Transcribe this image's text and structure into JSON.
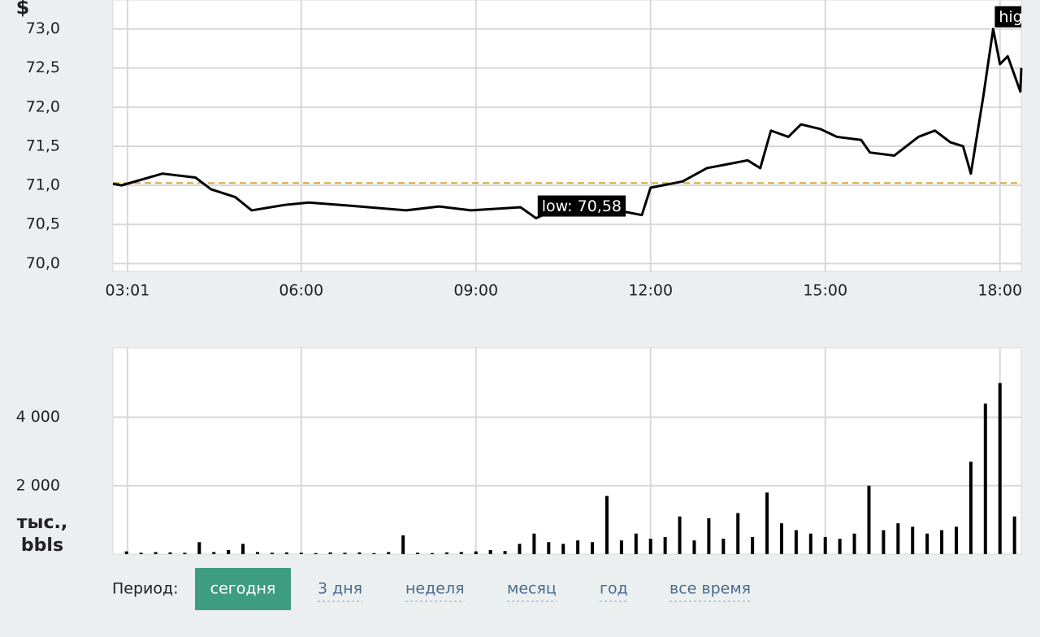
{
  "chart_data": [
    {
      "type": "line",
      "y_label": "$",
      "color": "#000000",
      "x": [
        "02:46",
        "02:55",
        "03:37",
        "04:11",
        "04:27",
        "04:52",
        "05:09",
        "05:43",
        "06:08",
        "06:50",
        "07:48",
        "08:22",
        "08:55",
        "09:46",
        "10:02",
        "10:19",
        "11:26",
        "11:51",
        "12:00",
        "12:33",
        "12:58",
        "13:40",
        "13:53",
        "14:04",
        "14:22",
        "14:35",
        "14:55",
        "15:12",
        "15:37",
        "15:46",
        "16:11",
        "16:36",
        "16:53",
        "17:09",
        "17:22",
        "17:30",
        "17:43",
        "17:53",
        "18:00",
        "18:08",
        "18:21",
        "18:22"
      ],
      "values": [
        71.02,
        71.0,
        71.15,
        71.1,
        70.95,
        70.85,
        70.68,
        70.75,
        70.78,
        70.74,
        70.68,
        70.73,
        70.68,
        70.72,
        70.58,
        70.68,
        70.68,
        70.62,
        70.97,
        71.05,
        71.22,
        71.32,
        71.22,
        71.7,
        71.62,
        71.78,
        71.72,
        71.62,
        71.58,
        71.42,
        71.38,
        71.62,
        71.7,
        71.55,
        71.5,
        71.15,
        72.15,
        73.0,
        72.55,
        72.65,
        72.2,
        72.5
      ],
      "xlim": [
        "02:46",
        "18:22"
      ],
      "xticks": [
        "03:01",
        "06:00",
        "09:00",
        "12:00",
        "15:00",
        "18:00"
      ],
      "ylim": [
        69.9,
        73.37
      ],
      "yticks": [
        {
          "value": 70.0,
          "label": "70,0"
        },
        {
          "value": 70.5,
          "label": "70,5"
        },
        {
          "value": 71.0,
          "label": "71,0"
        },
        {
          "value": 71.5,
          "label": "71,5"
        },
        {
          "value": 72.0,
          "label": "72,0"
        },
        {
          "value": 72.5,
          "label": "72,5"
        },
        {
          "value": 73.0,
          "label": "73,0"
        }
      ],
      "grid": true,
      "reference_line": {
        "value": 71.03,
        "color": "#d9a53a"
      },
      "annotations": [
        {
          "text": "low: 70,58",
          "x": "10:02",
          "y": 70.58
        },
        {
          "text": "hig",
          "x": "17:53",
          "y": 73.0
        }
      ]
    },
    {
      "type": "bar",
      "y_label": "тыс., bbls",
      "color": "#000000",
      "x": [
        "03:00",
        "03:15",
        "03:30",
        "03:45",
        "04:00",
        "04:15",
        "04:30",
        "04:45",
        "05:00",
        "05:15",
        "05:30",
        "05:45",
        "06:00",
        "06:15",
        "06:30",
        "06:45",
        "07:00",
        "07:15",
        "07:30",
        "07:45",
        "08:00",
        "08:15",
        "08:30",
        "08:45",
        "09:00",
        "09:15",
        "09:30",
        "09:45",
        "10:00",
        "10:15",
        "10:30",
        "10:45",
        "11:00",
        "11:15",
        "11:30",
        "11:45",
        "12:00",
        "12:15",
        "12:30",
        "12:45",
        "13:00",
        "13:15",
        "13:30",
        "13:45",
        "14:00",
        "14:15",
        "14:30",
        "14:45",
        "15:00",
        "15:15",
        "15:30",
        "15:45",
        "16:00",
        "16:15",
        "16:30",
        "16:45",
        "17:00",
        "17:15",
        "17:30",
        "17:45",
        "18:00",
        "18:15"
      ],
      "values": [
        80,
        40,
        60,
        50,
        40,
        350,
        60,
        120,
        300,
        60,
        40,
        50,
        40,
        30,
        50,
        40,
        50,
        30,
        60,
        550,
        40,
        30,
        50,
        60,
        80,
        120,
        90,
        300,
        600,
        350,
        300,
        400,
        350,
        1700,
        400,
        600,
        450,
        500,
        1100,
        400,
        1050,
        450,
        1200,
        500,
        1800,
        900,
        700,
        600,
        500,
        450,
        600,
        2000,
        700,
        900,
        800,
        600,
        700,
        800,
        2700,
        4400,
        5000,
        1100
      ],
      "xlim": [
        "02:46",
        "18:22"
      ],
      "xticks": [
        "03:01",
        "06:00",
        "09:00",
        "12:00",
        "15:00",
        "18:00"
      ],
      "ylim": [
        0,
        6030
      ],
      "yticks": [
        {
          "value": 2000,
          "label": "2 000"
        },
        {
          "value": 4000,
          "label": "4 000"
        }
      ],
      "grid": true
    }
  ],
  "period": {
    "label": "Период:",
    "options": [
      "сегодня",
      "3 дня",
      "неделя",
      "месяц",
      "год",
      "все время"
    ],
    "active": 0
  }
}
